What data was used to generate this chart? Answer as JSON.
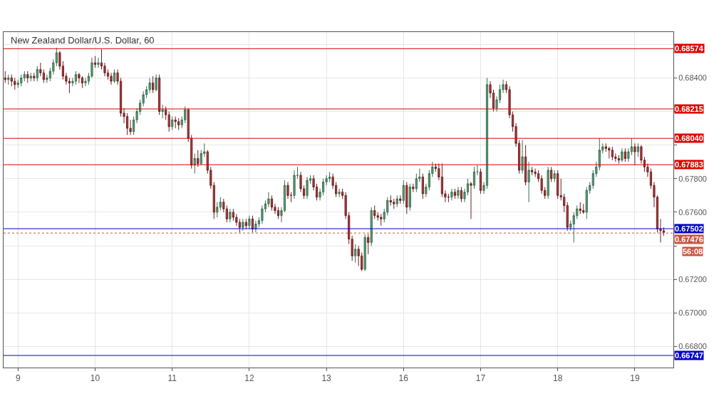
{
  "chart_data": {
    "type": "candlestick",
    "title": "New Zealand Dollar/U.S. Dollar, 60",
    "categories": [
      null,
      null,
      null,
      null,
      "9",
      null,
      null,
      null,
      null,
      null,
      null,
      null,
      null,
      null,
      null,
      null,
      null,
      null,
      null,
      null,
      null,
      null,
      null,
      null,
      null,
      null,
      null,
      null,
      "10",
      null,
      null,
      null,
      null,
      null,
      null,
      null,
      null,
      null,
      null,
      null,
      null,
      null,
      null,
      null,
      null,
      null,
      null,
      null,
      null,
      null,
      null,
      null,
      "11",
      null,
      null,
      null,
      null,
      null,
      null,
      null,
      null,
      null,
      null,
      null,
      null,
      null,
      null,
      null,
      null,
      null,
      null,
      null,
      null,
      null,
      null,
      null,
      "12",
      null,
      null,
      null,
      null,
      null,
      null,
      null,
      null,
      null,
      null,
      null,
      null,
      null,
      null,
      null,
      null,
      null,
      null,
      null,
      null,
      null,
      null,
      null,
      "13",
      null,
      null,
      null,
      null,
      null,
      null,
      null,
      null,
      null,
      null,
      null,
      null,
      null,
      null,
      null,
      null,
      null,
      null,
      null,
      null,
      null,
      null,
      null,
      "16",
      null,
      null,
      null,
      null,
      null,
      null,
      null,
      null,
      null,
      null,
      null,
      null,
      null,
      null,
      null,
      null,
      null,
      null,
      null,
      null,
      null,
      null,
      null,
      "17",
      null,
      null,
      null,
      null,
      null,
      null,
      null,
      null,
      null,
      null,
      null,
      null,
      null,
      null,
      null,
      null,
      null,
      null,
      null,
      null,
      null,
      null,
      null,
      "18",
      null,
      null,
      null,
      null,
      null,
      null,
      null,
      null,
      null,
      null,
      null,
      null,
      null,
      null,
      null,
      null,
      null,
      null,
      null,
      null,
      null,
      null,
      null,
      "19",
      null,
      null,
      null,
      null,
      null,
      null,
      null,
      null,
      null
    ],
    "ohlc": [
      [
        0.684,
        0.6844,
        0.6837,
        0.6839
      ],
      [
        0.6839,
        0.6842,
        0.6836,
        0.684
      ],
      [
        0.684,
        0.6842,
        0.6835,
        0.6838
      ],
      [
        0.6838,
        0.684,
        0.6833,
        0.6836
      ],
      [
        0.6836,
        0.6839,
        0.6834,
        0.6837
      ],
      [
        0.6837,
        0.6842,
        0.6835,
        0.684
      ],
      [
        0.684,
        0.6844,
        0.6838,
        0.6842
      ],
      [
        0.6842,
        0.6844,
        0.6837,
        0.684
      ],
      [
        0.684,
        0.6843,
        0.6838,
        0.6841
      ],
      [
        0.6841,
        0.6843,
        0.6838,
        0.684
      ],
      [
        0.684,
        0.6847,
        0.6838,
        0.6845
      ],
      [
        0.6845,
        0.6849,
        0.6841,
        0.6843
      ],
      [
        0.6843,
        0.6845,
        0.6837,
        0.6839
      ],
      [
        0.6839,
        0.6842,
        0.6837,
        0.684
      ],
      [
        0.684,
        0.6846,
        0.6838,
        0.6844
      ],
      [
        0.6844,
        0.6851,
        0.6842,
        0.6849
      ],
      [
        0.6849,
        0.6858,
        0.6847,
        0.6855
      ],
      [
        0.6855,
        0.6856,
        0.6845,
        0.6847
      ],
      [
        0.6847,
        0.685,
        0.6839,
        0.6841
      ],
      [
        0.6841,
        0.6843,
        0.6836,
        0.6838
      ],
      [
        0.6838,
        0.684,
        0.6831,
        0.6837
      ],
      [
        0.6837,
        0.684,
        0.6835,
        0.6838
      ],
      [
        0.6838,
        0.6844,
        0.6836,
        0.6842
      ],
      [
        0.6842,
        0.6843,
        0.6837,
        0.684
      ],
      [
        0.684,
        0.6841,
        0.6834,
        0.6837
      ],
      [
        0.6837,
        0.684,
        0.6835,
        0.6838
      ],
      [
        0.6838,
        0.6843,
        0.6836,
        0.6841
      ],
      [
        0.6841,
        0.6852,
        0.684,
        0.6849
      ],
      [
        0.6849,
        0.6853,
        0.6846,
        0.6848
      ],
      [
        0.6848,
        0.6852,
        0.6846,
        0.6849
      ],
      [
        0.6849,
        0.6857,
        0.6845,
        0.6847
      ],
      [
        0.6847,
        0.6849,
        0.6841,
        0.6843
      ],
      [
        0.6843,
        0.6845,
        0.6839,
        0.6841
      ],
      [
        0.6841,
        0.6843,
        0.6836,
        0.6838
      ],
      [
        0.6838,
        0.6845,
        0.6837,
        0.6843
      ],
      [
        0.6843,
        0.6845,
        0.6836,
        0.6838
      ],
      [
        0.6838,
        0.684,
        0.6817,
        0.6819
      ],
      [
        0.6819,
        0.6822,
        0.6813,
        0.6817
      ],
      [
        0.6817,
        0.6819,
        0.6806,
        0.681
      ],
      [
        0.681,
        0.6815,
        0.6806,
        0.6808
      ],
      [
        0.6808,
        0.6817,
        0.6806,
        0.6815
      ],
      [
        0.6815,
        0.6822,
        0.6813,
        0.682
      ],
      [
        0.682,
        0.6827,
        0.6818,
        0.6825
      ],
      [
        0.6825,
        0.6832,
        0.6823,
        0.683
      ],
      [
        0.683,
        0.6835,
        0.6828,
        0.6833
      ],
      [
        0.6833,
        0.684,
        0.6831,
        0.6837
      ],
      [
        0.6837,
        0.6841,
        0.6831,
        0.6833
      ],
      [
        0.6833,
        0.6842,
        0.6832,
        0.684
      ],
      [
        0.684,
        0.6842,
        0.6818,
        0.682
      ],
      [
        0.682,
        0.6824,
        0.6816,
        0.6821
      ],
      [
        0.6821,
        0.6823,
        0.6815,
        0.6818
      ],
      [
        0.6818,
        0.682,
        0.6808,
        0.6811
      ],
      [
        0.6811,
        0.6817,
        0.6809,
        0.6815
      ],
      [
        0.6815,
        0.6817,
        0.681,
        0.6814
      ],
      [
        0.6814,
        0.6816,
        0.6809,
        0.6812
      ],
      [
        0.6812,
        0.6817,
        0.681,
        0.6815
      ],
      [
        0.6815,
        0.6823,
        0.6813,
        0.6821
      ],
      [
        0.6821,
        0.6822,
        0.6802,
        0.6804
      ],
      [
        0.6804,
        0.6806,
        0.6786,
        0.6788
      ],
      [
        0.6788,
        0.6795,
        0.6783,
        0.6792
      ],
      [
        0.6792,
        0.6797,
        0.6787,
        0.6789
      ],
      [
        0.6789,
        0.6797,
        0.6788,
        0.6795
      ],
      [
        0.6795,
        0.6801,
        0.6793,
        0.6796
      ],
      [
        0.6796,
        0.6797,
        0.6783,
        0.6785
      ],
      [
        0.6785,
        0.6787,
        0.6774,
        0.6776
      ],
      [
        0.6776,
        0.6778,
        0.6756,
        0.676
      ],
      [
        0.676,
        0.6766,
        0.6757,
        0.6763
      ],
      [
        0.6763,
        0.6769,
        0.6761,
        0.6766
      ],
      [
        0.6766,
        0.6768,
        0.676,
        0.6762
      ],
      [
        0.6762,
        0.6764,
        0.6754,
        0.6756
      ],
      [
        0.6756,
        0.6762,
        0.6754,
        0.676
      ],
      [
        0.676,
        0.6762,
        0.6755,
        0.6757
      ],
      [
        0.6757,
        0.6759,
        0.6752,
        0.6754
      ],
      [
        0.6754,
        0.6756,
        0.6748,
        0.6751
      ],
      [
        0.6751,
        0.6756,
        0.6749,
        0.6754
      ],
      [
        0.6754,
        0.6756,
        0.675,
        0.6752
      ],
      [
        0.6752,
        0.6758,
        0.675,
        0.6756
      ],
      [
        0.6756,
        0.6758,
        0.6748,
        0.675
      ],
      [
        0.675,
        0.6755,
        0.6748,
        0.6753
      ],
      [
        0.6753,
        0.6757,
        0.6751,
        0.6755
      ],
      [
        0.6755,
        0.6764,
        0.6753,
        0.6762
      ],
      [
        0.6762,
        0.6767,
        0.676,
        0.6765
      ],
      [
        0.6765,
        0.6772,
        0.6763,
        0.6768
      ],
      [
        0.6768,
        0.677,
        0.6761,
        0.6763
      ],
      [
        0.6763,
        0.6765,
        0.6759,
        0.6761
      ],
      [
        0.6761,
        0.6763,
        0.6756,
        0.6758
      ],
      [
        0.6758,
        0.6763,
        0.6754,
        0.6761
      ],
      [
        0.6761,
        0.6779,
        0.676,
        0.6776
      ],
      [
        0.6776,
        0.6778,
        0.6768,
        0.677
      ],
      [
        0.677,
        0.6772,
        0.6766,
        0.677
      ],
      [
        0.677,
        0.6785,
        0.6768,
        0.6782
      ],
      [
        0.6782,
        0.6787,
        0.678,
        0.6782
      ],
      [
        0.6782,
        0.6784,
        0.6772,
        0.6774
      ],
      [
        0.6774,
        0.6776,
        0.6768,
        0.677
      ],
      [
        0.677,
        0.6781,
        0.6768,
        0.6779
      ],
      [
        0.6779,
        0.6782,
        0.6777,
        0.678
      ],
      [
        0.678,
        0.6782,
        0.6773,
        0.6775
      ],
      [
        0.6775,
        0.6777,
        0.6767,
        0.6769
      ],
      [
        0.6769,
        0.6774,
        0.6767,
        0.6772
      ],
      [
        0.6772,
        0.678,
        0.677,
        0.6778
      ],
      [
        0.6778,
        0.6782,
        0.6776,
        0.678
      ],
      [
        0.678,
        0.6784,
        0.6778,
        0.6781
      ],
      [
        0.6781,
        0.6783,
        0.6774,
        0.6776
      ],
      [
        0.6776,
        0.6778,
        0.6769,
        0.6771
      ],
      [
        0.6771,
        0.6774,
        0.6769,
        0.6772
      ],
      [
        0.6772,
        0.6774,
        0.6768,
        0.677
      ],
      [
        0.677,
        0.6772,
        0.6756,
        0.6758
      ],
      [
        0.6758,
        0.676,
        0.6741,
        0.6744
      ],
      [
        0.6744,
        0.6746,
        0.6731,
        0.6734
      ],
      [
        0.6734,
        0.6741,
        0.673,
        0.6738
      ],
      [
        0.6738,
        0.674,
        0.6728,
        0.6734
      ],
      [
        0.6734,
        0.6736,
        0.6725,
        0.6726
      ],
      [
        0.6726,
        0.6747,
        0.6725,
        0.6745
      ],
      [
        0.6745,
        0.6747,
        0.6735,
        0.6742
      ],
      [
        0.6742,
        0.6763,
        0.674,
        0.6761
      ],
      [
        0.6761,
        0.6764,
        0.6756,
        0.6758
      ],
      [
        0.6758,
        0.676,
        0.6755,
        0.6757
      ],
      [
        0.6757,
        0.6759,
        0.6752,
        0.6756
      ],
      [
        0.6756,
        0.6762,
        0.6754,
        0.676
      ],
      [
        0.676,
        0.6769,
        0.6758,
        0.6767
      ],
      [
        0.6767,
        0.677,
        0.6764,
        0.6766
      ],
      [
        0.6766,
        0.6768,
        0.6762,
        0.6765
      ],
      [
        0.6765,
        0.677,
        0.6763,
        0.6768
      ],
      [
        0.6768,
        0.677,
        0.6765,
        0.6767
      ],
      [
        0.6767,
        0.6779,
        0.6765,
        0.6776
      ],
      [
        0.6776,
        0.6778,
        0.6759,
        0.6763
      ],
      [
        0.6763,
        0.6777,
        0.6761,
        0.6775
      ],
      [
        0.6775,
        0.6777,
        0.6772,
        0.6774
      ],
      [
        0.6774,
        0.6783,
        0.6772,
        0.678
      ],
      [
        0.678,
        0.6786,
        0.6778,
        0.6781
      ],
      [
        0.6781,
        0.6783,
        0.6768,
        0.6771
      ],
      [
        0.6771,
        0.6777,
        0.6769,
        0.6775
      ],
      [
        0.6775,
        0.6785,
        0.6773,
        0.6783
      ],
      [
        0.6783,
        0.679,
        0.6781,
        0.6787
      ],
      [
        0.6787,
        0.6789,
        0.6784,
        0.6786
      ],
      [
        0.6786,
        0.6789,
        0.6779,
        0.6781
      ],
      [
        0.6781,
        0.6789,
        0.6769,
        0.6771
      ],
      [
        0.6771,
        0.6773,
        0.6766,
        0.6769
      ],
      [
        0.6769,
        0.6771,
        0.6766,
        0.6769
      ],
      [
        0.6769,
        0.6774,
        0.6767,
        0.6772
      ],
      [
        0.6772,
        0.6774,
        0.6768,
        0.677
      ],
      [
        0.677,
        0.6775,
        0.6768,
        0.6773
      ],
      [
        0.6773,
        0.6775,
        0.6766,
        0.6768
      ],
      [
        0.6768,
        0.6774,
        0.6766,
        0.6772
      ],
      [
        0.6772,
        0.678,
        0.677,
        0.6777
      ],
      [
        0.6777,
        0.6778,
        0.6756,
        0.6776
      ],
      [
        0.6776,
        0.6787,
        0.6774,
        0.6784
      ],
      [
        0.6784,
        0.6788,
        0.6782,
        0.6784
      ],
      [
        0.6784,
        0.6786,
        0.6771,
        0.6773
      ],
      [
        0.6773,
        0.6778,
        0.6771,
        0.6776
      ],
      [
        0.6776,
        0.684,
        0.6774,
        0.6836
      ],
      [
        0.6836,
        0.6838,
        0.6828,
        0.6831
      ],
      [
        0.6831,
        0.6833,
        0.682,
        0.6822
      ],
      [
        0.6822,
        0.6829,
        0.682,
        0.6827
      ],
      [
        0.6827,
        0.6836,
        0.6825,
        0.6833
      ],
      [
        0.6833,
        0.6839,
        0.6831,
        0.6836
      ],
      [
        0.6836,
        0.6838,
        0.6831,
        0.6833
      ],
      [
        0.6833,
        0.6835,
        0.6816,
        0.6818
      ],
      [
        0.6818,
        0.682,
        0.6808,
        0.6811
      ],
      [
        0.6811,
        0.6813,
        0.6799,
        0.6801
      ],
      [
        0.6801,
        0.6803,
        0.6783,
        0.6785
      ],
      [
        0.6785,
        0.6803,
        0.6783,
        0.6793
      ],
      [
        0.6793,
        0.68,
        0.6776,
        0.6778
      ],
      [
        0.6778,
        0.679,
        0.6766,
        0.6785
      ],
      [
        0.6785,
        0.6787,
        0.6782,
        0.6784
      ],
      [
        0.6784,
        0.6786,
        0.6781,
        0.6783
      ],
      [
        0.6783,
        0.6785,
        0.6778,
        0.678
      ],
      [
        0.678,
        0.6782,
        0.6771,
        0.6773
      ],
      [
        0.6773,
        0.6775,
        0.6768,
        0.677
      ],
      [
        0.677,
        0.6787,
        0.6768,
        0.6785
      ],
      [
        0.6785,
        0.6787,
        0.6778,
        0.678
      ],
      [
        0.678,
        0.6785,
        0.6778,
        0.6783
      ],
      [
        0.6783,
        0.6785,
        0.6768,
        0.677
      ],
      [
        0.677,
        0.678,
        0.6767,
        0.6769
      ],
      [
        0.6769,
        0.6771,
        0.676,
        0.6764
      ],
      [
        0.6764,
        0.6766,
        0.6749,
        0.6751
      ],
      [
        0.6751,
        0.6755,
        0.6749,
        0.6753
      ],
      [
        0.6753,
        0.676,
        0.6742,
        0.6758
      ],
      [
        0.6758,
        0.6764,
        0.6756,
        0.6762
      ],
      [
        0.6762,
        0.6766,
        0.6759,
        0.6761
      ],
      [
        0.6761,
        0.6765,
        0.6759,
        0.676
      ],
      [
        0.676,
        0.6775,
        0.6756,
        0.6773
      ],
      [
        0.6773,
        0.6778,
        0.6771,
        0.6776
      ],
      [
        0.6776,
        0.6785,
        0.6774,
        0.6783
      ],
      [
        0.6783,
        0.679,
        0.6781,
        0.6787
      ],
      [
        0.6787,
        0.6804,
        0.6785,
        0.6797
      ],
      [
        0.6797,
        0.6801,
        0.6795,
        0.6799
      ],
      [
        0.6799,
        0.6801,
        0.6796,
        0.6798
      ],
      [
        0.6798,
        0.6799,
        0.6792,
        0.6797
      ],
      [
        0.6797,
        0.6799,
        0.6791,
        0.6793
      ],
      [
        0.6793,
        0.6795,
        0.679,
        0.6792
      ],
      [
        0.6792,
        0.6794,
        0.6789,
        0.6791
      ],
      [
        0.6791,
        0.6798,
        0.679,
        0.6796
      ],
      [
        0.6796,
        0.6798,
        0.679,
        0.6792
      ],
      [
        0.6792,
        0.6798,
        0.679,
        0.6796
      ],
      [
        0.6796,
        0.6804,
        0.6794,
        0.6799
      ],
      [
        0.6799,
        0.6801,
        0.6788,
        0.6796
      ],
      [
        0.6796,
        0.6801,
        0.6793,
        0.6799
      ],
      [
        0.6799,
        0.68,
        0.6789,
        0.6791
      ],
      [
        0.6791,
        0.6793,
        0.6784,
        0.6787
      ],
      [
        0.6787,
        0.6789,
        0.6781,
        0.6784
      ],
      [
        0.6784,
        0.6786,
        0.6774,
        0.6776
      ],
      [
        0.6776,
        0.6778,
        0.6763,
        0.6769
      ],
      [
        0.6769,
        0.677,
        0.6748,
        0.675
      ],
      [
        0.675,
        0.6756,
        0.6742,
        0.6749
      ],
      [
        0.6749,
        0.6751,
        0.6746,
        0.6748
      ]
    ],
    "ylim": [
      0.66675,
      0.68673
    ],
    "yticks": [
      {
        "value": 0.668,
        "label": "0.66800"
      },
      {
        "value": 0.67,
        "label": "0.67000"
      },
      {
        "value": 0.672,
        "label": "0.67200"
      },
      {
        "value": 0.674,
        "label": null
      },
      {
        "value": 0.676,
        "label": "0.67600"
      },
      {
        "value": 0.678,
        "label": "0.67800"
      },
      {
        "value": 0.68,
        "label": null
      },
      {
        "value": 0.682,
        "label": null
      },
      {
        "value": 0.684,
        "label": "0.68400"
      },
      {
        "value": 0.686,
        "label": null
      }
    ],
    "ref_lines": [
      {
        "axis": "y",
        "value": 0.68574,
        "label": "0.68574",
        "color": "#e00000"
      },
      {
        "axis": "y",
        "value": 0.68215,
        "label": "0.68215",
        "color": "#e00000"
      },
      {
        "axis": "y",
        "value": 0.6804,
        "label": "0.68040",
        "color": "#e00000"
      },
      {
        "axis": "y",
        "value": 0.67883,
        "label": "0.67883",
        "color": "#e00000"
      },
      {
        "axis": "y",
        "value": 0.67502,
        "label": "0.67502",
        "color": "#0000c8"
      },
      {
        "axis": "y",
        "value": 0.67476,
        "label": "0.67476",
        "color": "#c8553d",
        "line_style": "dotted"
      },
      {
        "axis": "y",
        "value": 0.66747,
        "label": "0.66747",
        "color": "#0000c8"
      }
    ],
    "annotations": [
      "56:08"
    ],
    "grid": true
  }
}
